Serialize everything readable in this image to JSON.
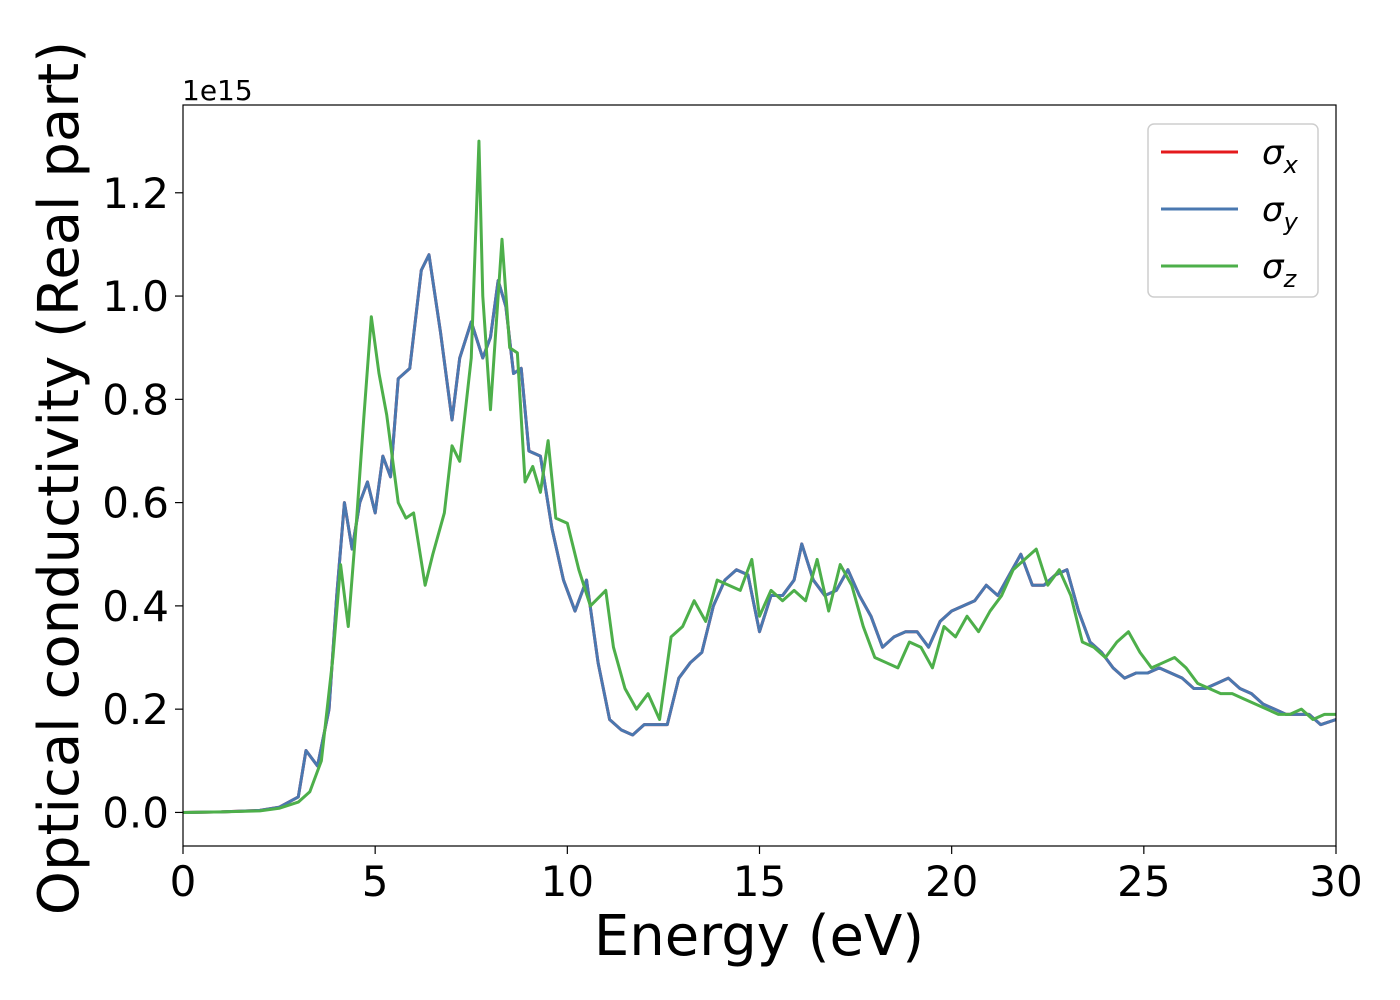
{
  "chart_data": {
    "type": "line",
    "title": "",
    "xlabel": "Energy (eV)",
    "ylabel": "Optical conductivity (Real part)",
    "y_offset_label": "1e15",
    "xlim": [
      0,
      30
    ],
    "ylim": [
      -0.065,
      1.37
    ],
    "xticks": [
      0,
      5,
      10,
      15,
      20,
      25,
      30
    ],
    "yticks": [
      0.0,
      0.2,
      0.4,
      0.6,
      0.8,
      1.0,
      1.2
    ],
    "xtick_labels": [
      "0",
      "5",
      "10",
      "15",
      "20",
      "25",
      "30"
    ],
    "ytick_labels": [
      "0.0",
      "0.2",
      "0.4",
      "0.6",
      "0.8",
      "1.0",
      "1.2"
    ],
    "grid": false,
    "legend_position": "top-right",
    "series": [
      {
        "name": "σx",
        "symbol": "σ",
        "subscript": "x",
        "color": "#e41a1c",
        "x": [
          0,
          1,
          2,
          2.5,
          3.0,
          3.2,
          3.5,
          3.8,
          4.0,
          4.2,
          4.4,
          4.6,
          4.8,
          5.0,
          5.2,
          5.4,
          5.6,
          5.9,
          6.2,
          6.4,
          6.7,
          7.0,
          7.2,
          7.5,
          7.8,
          8.0,
          8.2,
          8.4,
          8.6,
          8.8,
          9.0,
          9.3,
          9.6,
          9.9,
          10.2,
          10.5,
          10.8,
          11.1,
          11.4,
          11.7,
          12.0,
          12.3,
          12.6,
          12.9,
          13.2,
          13.5,
          13.8,
          14.1,
          14.4,
          14.7,
          15.0,
          15.3,
          15.6,
          15.9,
          16.1,
          16.4,
          16.7,
          17.0,
          17.3,
          17.6,
          17.9,
          18.2,
          18.5,
          18.8,
          19.1,
          19.4,
          19.7,
          20.0,
          20.3,
          20.6,
          20.9,
          21.2,
          21.5,
          21.8,
          22.1,
          22.4,
          22.7,
          23.0,
          23.3,
          23.6,
          23.9,
          24.2,
          24.5,
          24.8,
          25.1,
          25.4,
          25.7,
          26.0,
          26.3,
          26.6,
          26.9,
          27.2,
          27.5,
          27.8,
          28.1,
          28.4,
          28.7,
          29.0,
          29.3,
          29.6,
          30.0
        ],
        "y": [
          0.0,
          0.001,
          0.004,
          0.01,
          0.03,
          0.12,
          0.09,
          0.2,
          0.42,
          0.6,
          0.51,
          0.6,
          0.64,
          0.58,
          0.69,
          0.65,
          0.84,
          0.86,
          1.05,
          1.08,
          0.93,
          0.76,
          0.88,
          0.95,
          0.88,
          0.92,
          1.03,
          0.98,
          0.85,
          0.86,
          0.7,
          0.69,
          0.55,
          0.45,
          0.39,
          0.45,
          0.29,
          0.18,
          0.16,
          0.15,
          0.17,
          0.17,
          0.17,
          0.26,
          0.29,
          0.31,
          0.4,
          0.45,
          0.47,
          0.46,
          0.35,
          0.42,
          0.42,
          0.45,
          0.52,
          0.45,
          0.42,
          0.43,
          0.47,
          0.42,
          0.38,
          0.32,
          0.34,
          0.35,
          0.35,
          0.32,
          0.37,
          0.39,
          0.4,
          0.41,
          0.44,
          0.42,
          0.46,
          0.5,
          0.44,
          0.44,
          0.46,
          0.47,
          0.39,
          0.33,
          0.31,
          0.28,
          0.26,
          0.27,
          0.27,
          0.28,
          0.27,
          0.26,
          0.24,
          0.24,
          0.25,
          0.26,
          0.24,
          0.23,
          0.21,
          0.2,
          0.19,
          0.19,
          0.19,
          0.17,
          0.18
        ]
      },
      {
        "name": "σy",
        "symbol": "σ",
        "subscript": "y",
        "color": "#4a78b0",
        "x": [
          0,
          1,
          2,
          2.5,
          3.0,
          3.2,
          3.5,
          3.8,
          4.0,
          4.2,
          4.4,
          4.6,
          4.8,
          5.0,
          5.2,
          5.4,
          5.6,
          5.9,
          6.2,
          6.4,
          6.7,
          7.0,
          7.2,
          7.5,
          7.8,
          8.0,
          8.2,
          8.4,
          8.6,
          8.8,
          9.0,
          9.3,
          9.6,
          9.9,
          10.2,
          10.5,
          10.8,
          11.1,
          11.4,
          11.7,
          12.0,
          12.3,
          12.6,
          12.9,
          13.2,
          13.5,
          13.8,
          14.1,
          14.4,
          14.7,
          15.0,
          15.3,
          15.6,
          15.9,
          16.1,
          16.4,
          16.7,
          17.0,
          17.3,
          17.6,
          17.9,
          18.2,
          18.5,
          18.8,
          19.1,
          19.4,
          19.7,
          20.0,
          20.3,
          20.6,
          20.9,
          21.2,
          21.5,
          21.8,
          22.1,
          22.4,
          22.7,
          23.0,
          23.3,
          23.6,
          23.9,
          24.2,
          24.5,
          24.8,
          25.1,
          25.4,
          25.7,
          26.0,
          26.3,
          26.6,
          26.9,
          27.2,
          27.5,
          27.8,
          28.1,
          28.4,
          28.7,
          29.0,
          29.3,
          29.6,
          30.0
        ],
        "y": [
          0.0,
          0.001,
          0.004,
          0.01,
          0.03,
          0.12,
          0.09,
          0.2,
          0.42,
          0.6,
          0.51,
          0.6,
          0.64,
          0.58,
          0.69,
          0.65,
          0.84,
          0.86,
          1.05,
          1.08,
          0.93,
          0.76,
          0.88,
          0.95,
          0.88,
          0.92,
          1.03,
          0.98,
          0.85,
          0.86,
          0.7,
          0.69,
          0.55,
          0.45,
          0.39,
          0.45,
          0.29,
          0.18,
          0.16,
          0.15,
          0.17,
          0.17,
          0.17,
          0.26,
          0.29,
          0.31,
          0.4,
          0.45,
          0.47,
          0.46,
          0.35,
          0.42,
          0.42,
          0.45,
          0.52,
          0.45,
          0.42,
          0.43,
          0.47,
          0.42,
          0.38,
          0.32,
          0.34,
          0.35,
          0.35,
          0.32,
          0.37,
          0.39,
          0.4,
          0.41,
          0.44,
          0.42,
          0.46,
          0.5,
          0.44,
          0.44,
          0.46,
          0.47,
          0.39,
          0.33,
          0.31,
          0.28,
          0.26,
          0.27,
          0.27,
          0.28,
          0.27,
          0.26,
          0.24,
          0.24,
          0.25,
          0.26,
          0.24,
          0.23,
          0.21,
          0.2,
          0.19,
          0.19,
          0.19,
          0.17,
          0.18
        ]
      },
      {
        "name": "σz",
        "symbol": "σ",
        "subscript": "z",
        "color": "#4daf4a",
        "x": [
          0,
          1,
          2,
          2.5,
          3.0,
          3.3,
          3.6,
          3.9,
          4.1,
          4.3,
          4.5,
          4.7,
          4.9,
          5.1,
          5.3,
          5.6,
          5.8,
          6.0,
          6.3,
          6.5,
          6.8,
          7.0,
          7.2,
          7.5,
          7.7,
          7.8,
          8.0,
          8.2,
          8.3,
          8.5,
          8.7,
          8.9,
          9.1,
          9.3,
          9.5,
          9.7,
          10.0,
          10.3,
          10.6,
          11.0,
          11.2,
          11.5,
          11.8,
          12.1,
          12.4,
          12.7,
          13.0,
          13.3,
          13.6,
          13.9,
          14.2,
          14.5,
          14.8,
          15.0,
          15.3,
          15.6,
          15.9,
          16.2,
          16.5,
          16.8,
          17.1,
          17.4,
          17.7,
          18.0,
          18.3,
          18.6,
          18.9,
          19.2,
          19.5,
          19.8,
          20.1,
          20.4,
          20.7,
          21.0,
          21.3,
          21.6,
          21.9,
          22.2,
          22.5,
          22.8,
          23.1,
          23.4,
          23.7,
          24.0,
          24.3,
          24.6,
          24.9,
          25.2,
          25.5,
          25.8,
          26.1,
          26.4,
          26.7,
          27.0,
          27.3,
          27.6,
          27.9,
          28.2,
          28.5,
          28.8,
          29.1,
          29.4,
          29.7,
          30.0
        ],
        "y": [
          0.0,
          0.001,
          0.003,
          0.008,
          0.02,
          0.04,
          0.1,
          0.3,
          0.48,
          0.36,
          0.55,
          0.76,
          0.96,
          0.85,
          0.77,
          0.6,
          0.57,
          0.58,
          0.44,
          0.5,
          0.58,
          0.71,
          0.68,
          0.88,
          1.3,
          1.0,
          0.78,
          1.0,
          1.11,
          0.9,
          0.89,
          0.64,
          0.67,
          0.62,
          0.72,
          0.57,
          0.56,
          0.47,
          0.4,
          0.43,
          0.32,
          0.24,
          0.2,
          0.23,
          0.18,
          0.34,
          0.36,
          0.41,
          0.37,
          0.45,
          0.44,
          0.43,
          0.49,
          0.38,
          0.43,
          0.41,
          0.43,
          0.41,
          0.49,
          0.39,
          0.48,
          0.44,
          0.36,
          0.3,
          0.29,
          0.28,
          0.33,
          0.32,
          0.28,
          0.36,
          0.34,
          0.38,
          0.35,
          0.39,
          0.42,
          0.47,
          0.49,
          0.51,
          0.44,
          0.47,
          0.42,
          0.33,
          0.32,
          0.3,
          0.33,
          0.35,
          0.31,
          0.28,
          0.29,
          0.3,
          0.28,
          0.25,
          0.24,
          0.23,
          0.23,
          0.22,
          0.21,
          0.2,
          0.19,
          0.19,
          0.2,
          0.18,
          0.19,
          0.19
        ]
      }
    ]
  }
}
